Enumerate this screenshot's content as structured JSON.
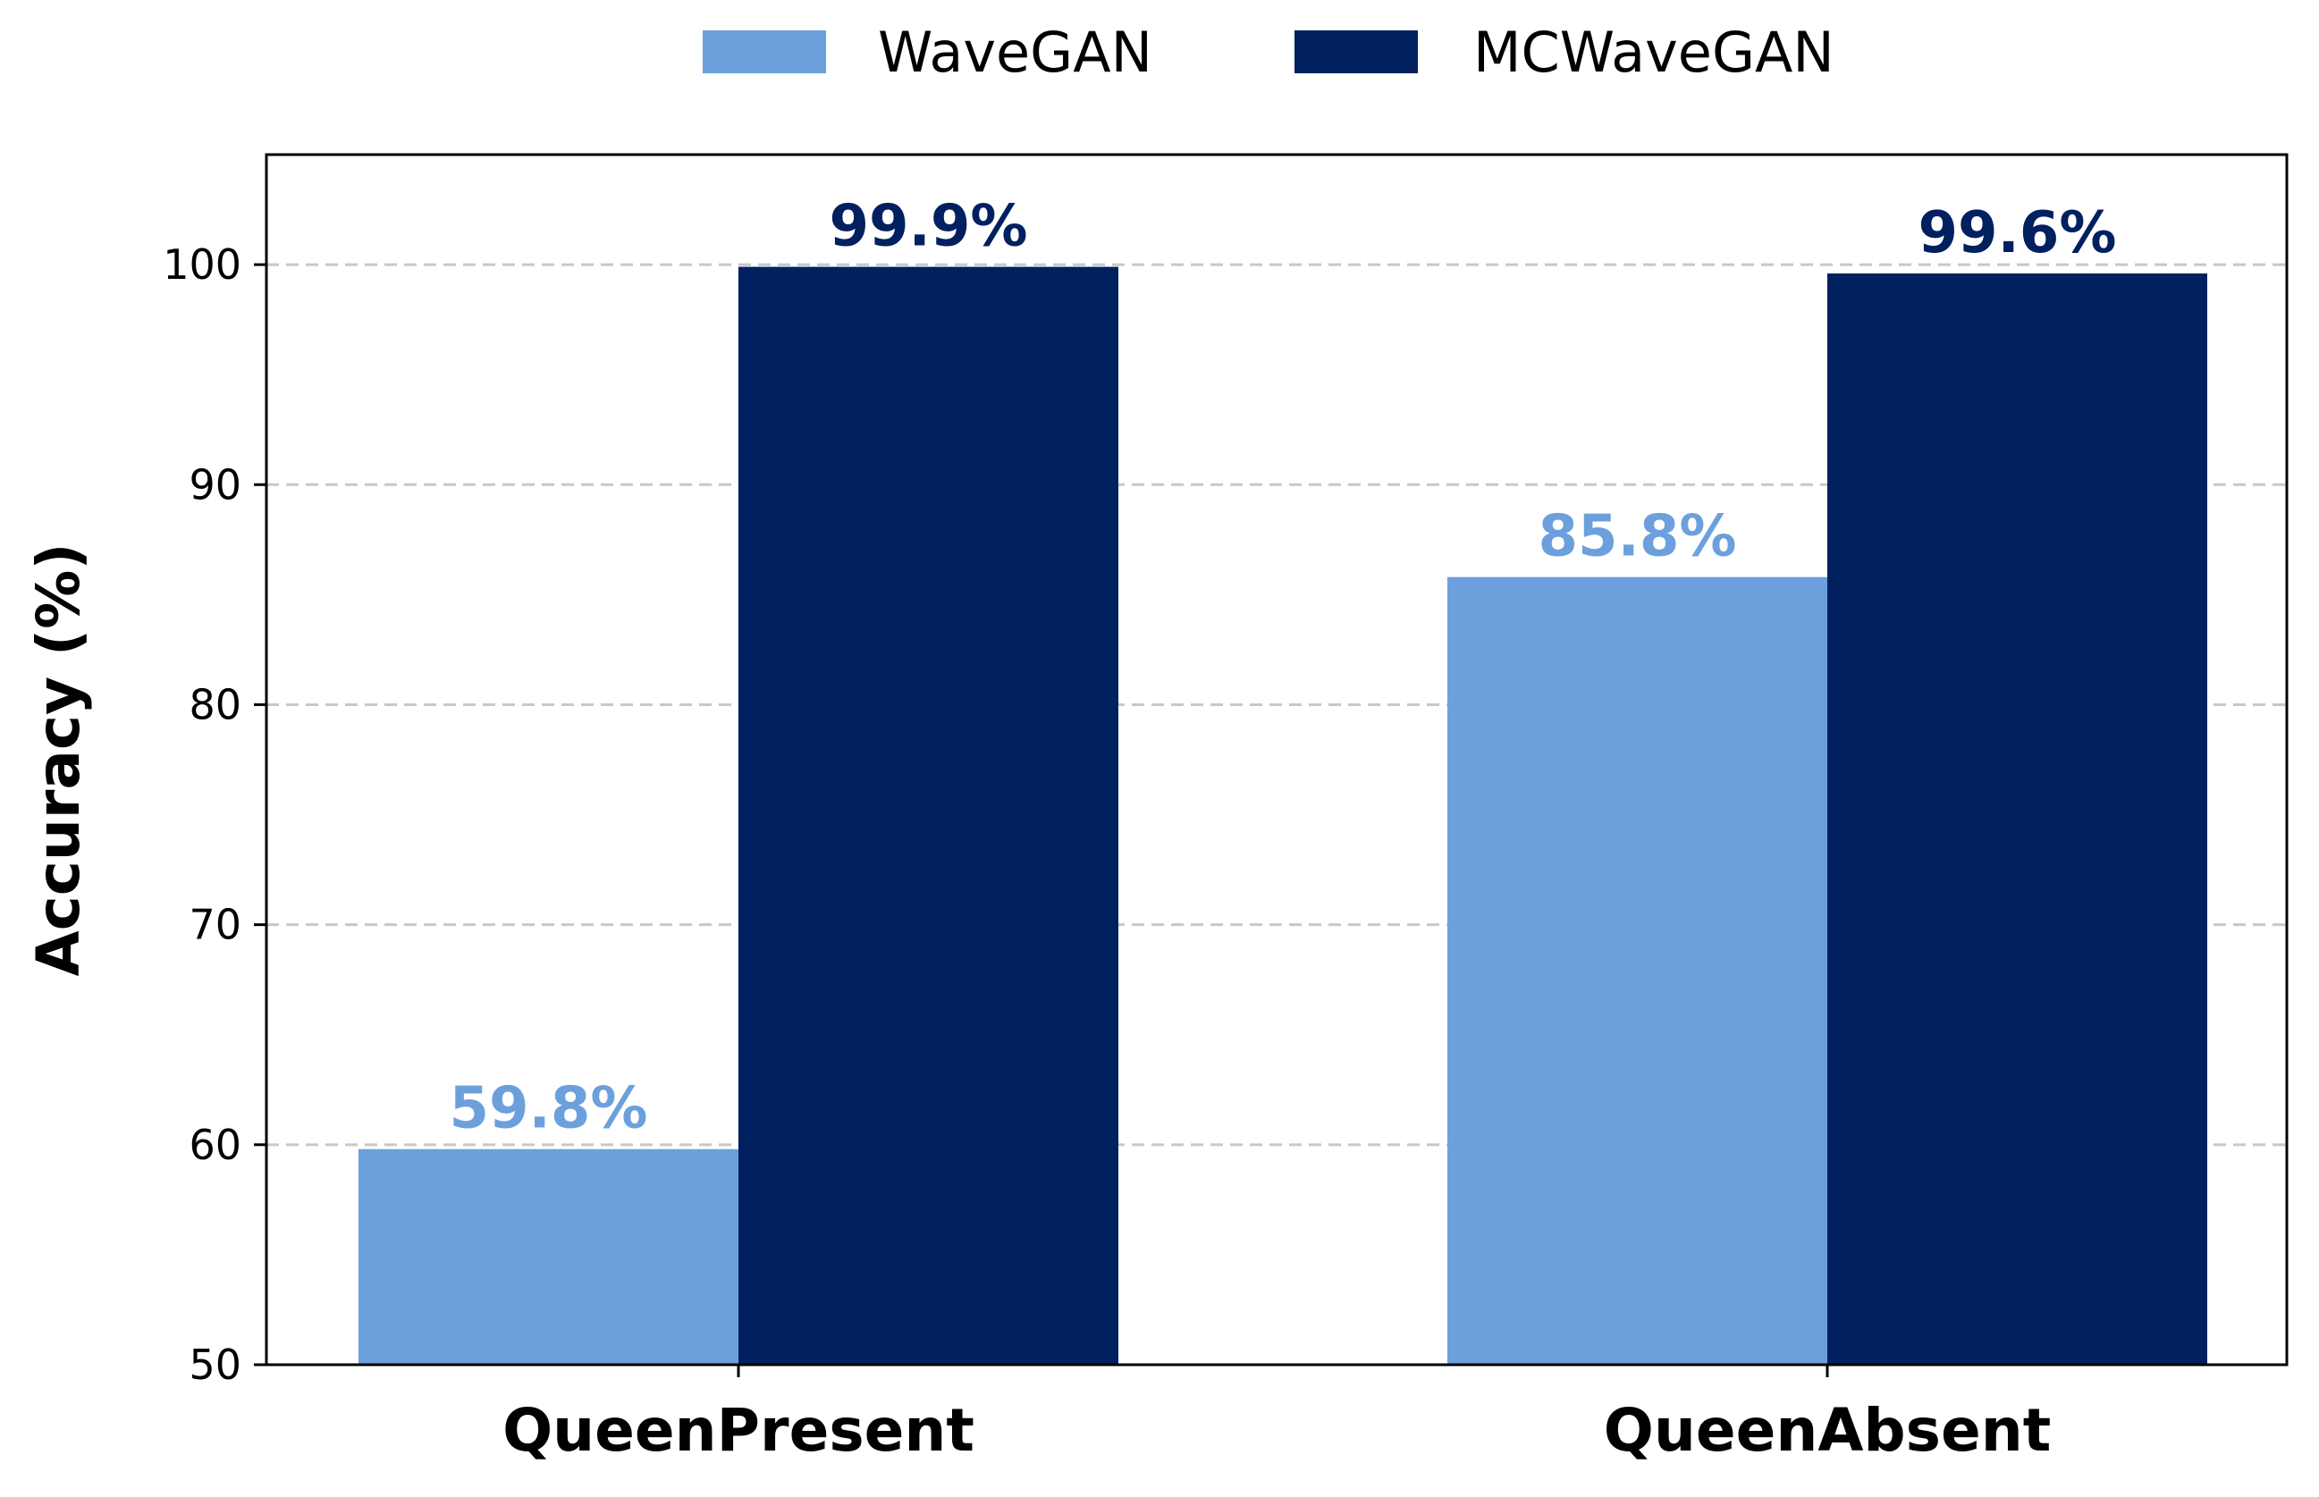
{
  "chart_data": {
    "type": "bar",
    "title": "",
    "xlabel": "",
    "ylabel": "Accuracy (%)",
    "ylim": [
      50,
      105
    ],
    "yticks": [
      50,
      60,
      70,
      80,
      90,
      100
    ],
    "grid": true,
    "legend_position": "top-center",
    "categories": [
      "QueenPresent",
      "QueenAbsent"
    ],
    "series": [
      {
        "name": "WaveGAN",
        "color": "#6ca0dc",
        "values": [
          59.8,
          85.8
        ],
        "labels": [
          "59.8%",
          "85.8%"
        ]
      },
      {
        "name": "MCWaveGAN",
        "color": "#002060",
        "values": [
          99.9,
          99.6
        ],
        "labels": [
          "99.9%",
          "99.6%"
        ]
      }
    ]
  }
}
